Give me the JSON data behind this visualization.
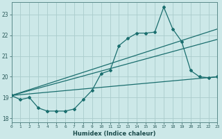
{
  "xlabel": "Humidex (Indice chaleur)",
  "background_color": "#cce8e8",
  "grid_color": "#aacccc",
  "line_color": "#1a6e6e",
  "x_ticks": [
    0,
    1,
    2,
    3,
    4,
    5,
    6,
    7,
    8,
    9,
    10,
    11,
    12,
    13,
    14,
    15,
    16,
    17,
    18,
    19,
    20,
    21,
    22,
    23
  ],
  "xlim": [
    0,
    23
  ],
  "ylim": [
    17.8,
    23.6
  ],
  "y_ticks": [
    18,
    19,
    20,
    21,
    22,
    23
  ],
  "series1_x": [
    0,
    1,
    2,
    3,
    4,
    5,
    6,
    7,
    8,
    9,
    10,
    11,
    12,
    13,
    14,
    15,
    16,
    17,
    18,
    19,
    20,
    21,
    22,
    23
  ],
  "series1_y": [
    19.1,
    18.9,
    19.0,
    18.5,
    18.35,
    18.35,
    18.35,
    18.45,
    18.9,
    19.35,
    20.15,
    20.3,
    21.5,
    21.85,
    22.1,
    22.1,
    22.15,
    23.35,
    22.3,
    21.7,
    20.3,
    20.0,
    19.95,
    20.0
  ],
  "trend1_x": [
    0,
    23
  ],
  "trend1_y": [
    19.1,
    20.0
  ],
  "trend2_x": [
    0,
    23
  ],
  "trend2_y": [
    19.1,
    21.8
  ],
  "trend3_x": [
    0,
    23
  ],
  "trend3_y": [
    19.1,
    22.3
  ]
}
